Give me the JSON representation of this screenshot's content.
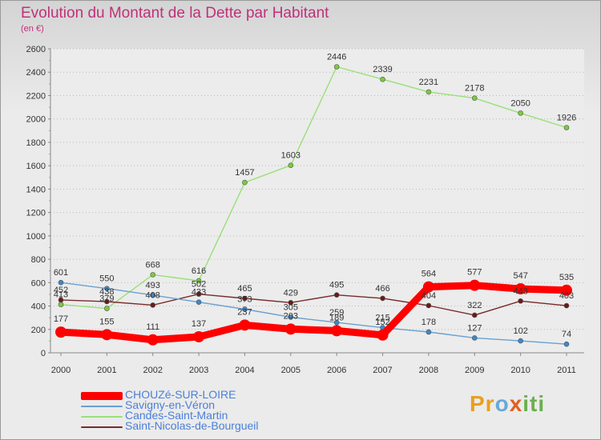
{
  "page": {
    "title": "Evolution du Montant de la Dette par Habitant",
    "subtitle": "(en €)",
    "brand": "Proxiti"
  },
  "chart_data": {
    "type": "line",
    "title": "Evolution du Montant de la Dette par Habitant",
    "subtitle": "(en €)",
    "x": [
      "2000",
      "2001",
      "2002",
      "2003",
      "2004",
      "2005",
      "2006",
      "2007",
      "2008",
      "2009",
      "2010",
      "2011"
    ],
    "ylim": [
      0,
      2600
    ],
    "yticks": [
      0,
      200,
      400,
      600,
      800,
      1000,
      1200,
      1400,
      1600,
      1800,
      2000,
      2200,
      2400,
      2600
    ],
    "grid": "horizontal dotted",
    "legend_position": "bottom-left",
    "series": [
      {
        "name": "Candes-Saint-Martin",
        "color": "#98e078",
        "marker": "#7acc3a",
        "values": [
          413,
          379,
          668,
          616,
          1457,
          1603,
          2446,
          2339,
          2231,
          2178,
          2050,
          1926
        ]
      },
      {
        "name": "Saint-Nicolas-de-Bourgueil",
        "color": "#7a2a2a",
        "marker": "#6a1a1a",
        "values": [
          452,
          438,
          408,
          502,
          465,
          429,
          495,
          466,
          404,
          322,
          443,
          403
        ]
      },
      {
        "name": "Savigny-en-Véron",
        "color": "#6aa0d0",
        "marker": "#3a88d0",
        "values": [
          601,
          550,
          493,
          433,
          373,
          305,
          259,
          215,
          178,
          127,
          102,
          74
        ]
      },
      {
        "name": "CHOUZé-SUR-LOIRE",
        "color": "#ff0000",
        "marker": "#ff0000",
        "thick": true,
        "values": [
          177,
          155,
          111,
          137,
          237,
          203,
          189,
          152,
          564,
          577,
          547,
          535
        ]
      }
    ],
    "legend_order": [
      "CHOUZé-SUR-LOIRE",
      "Savigny-en-Véron",
      "Candes-Saint-Martin",
      "Saint-Nicolas-de-Bourgueil"
    ]
  }
}
